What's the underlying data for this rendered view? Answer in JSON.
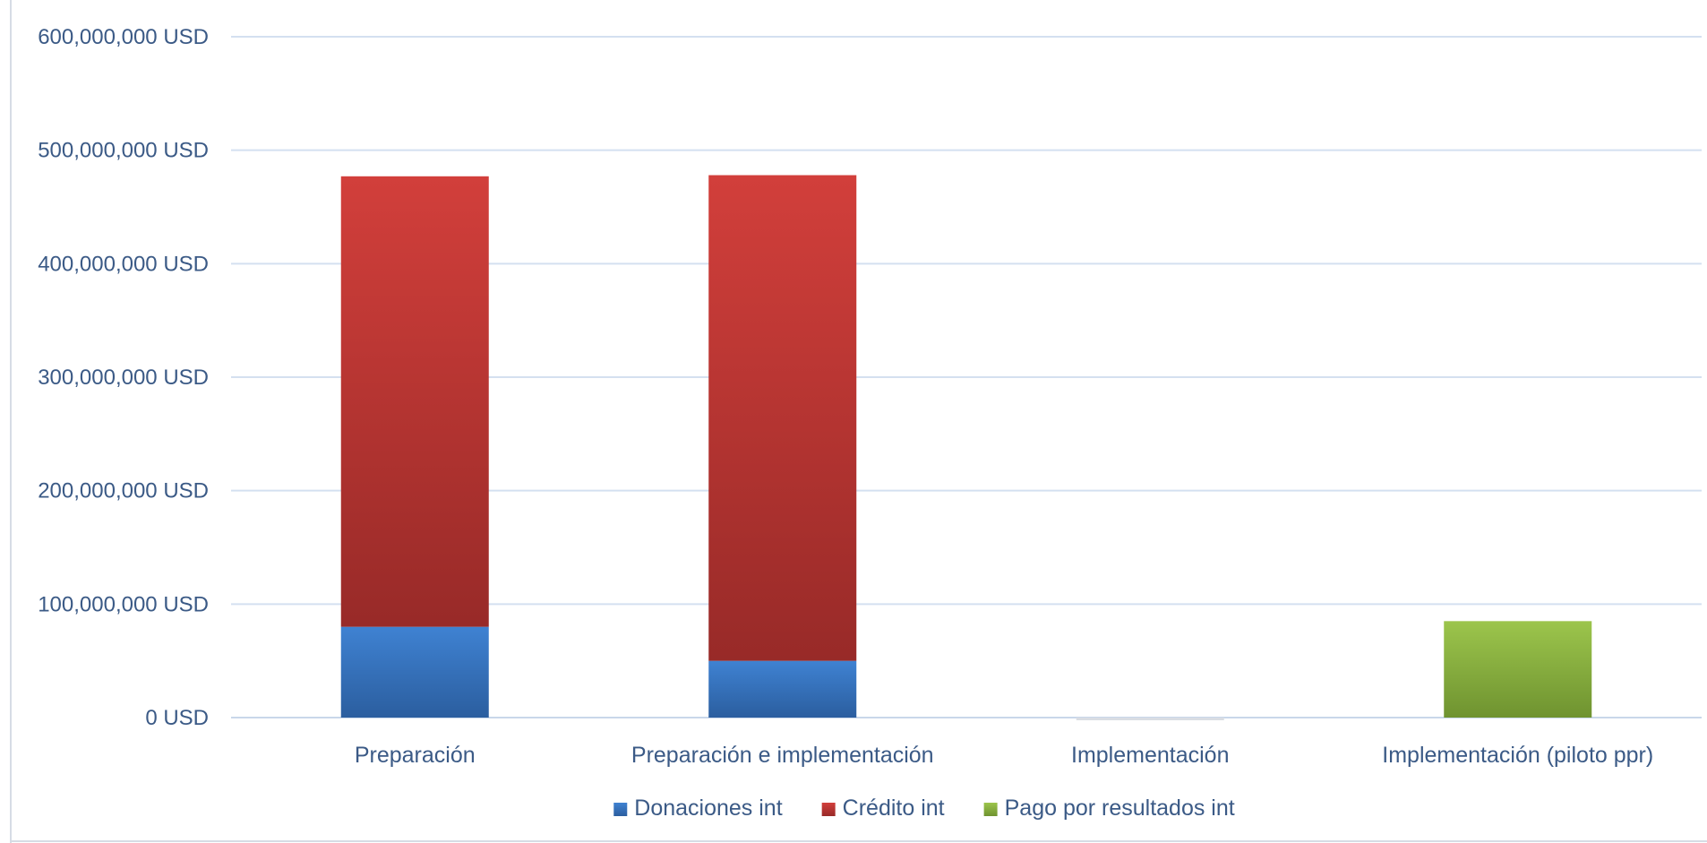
{
  "chart_data": {
    "type": "bar",
    "stacked": true,
    "categories": [
      "Preparación",
      "Preparación e implementación",
      "Implementación",
      "Implementación (piloto ppr)"
    ],
    "series": [
      {
        "name": "Donaciones int",
        "color": "#3E7CC9",
        "values": [
          80000000,
          50000000,
          0,
          0
        ]
      },
      {
        "name": "Crédito int",
        "color": "#C9403C",
        "values": [
          397000000,
          428000000,
          0,
          0
        ]
      },
      {
        "name": "Pago por resultados int",
        "color": "#8DB744",
        "values": [
          0,
          0,
          0,
          85000000
        ]
      }
    ],
    "y_ticks": [
      "0 USD",
      "100,000,000 USD",
      "200,000,000 USD",
      "300,000,000 USD",
      "400,000,000 USD",
      "500,000,000 USD",
      "600,000,000 USD"
    ],
    "ylim": [
      0,
      600000000
    ],
    "grid": true,
    "legend_position": "bottom"
  }
}
